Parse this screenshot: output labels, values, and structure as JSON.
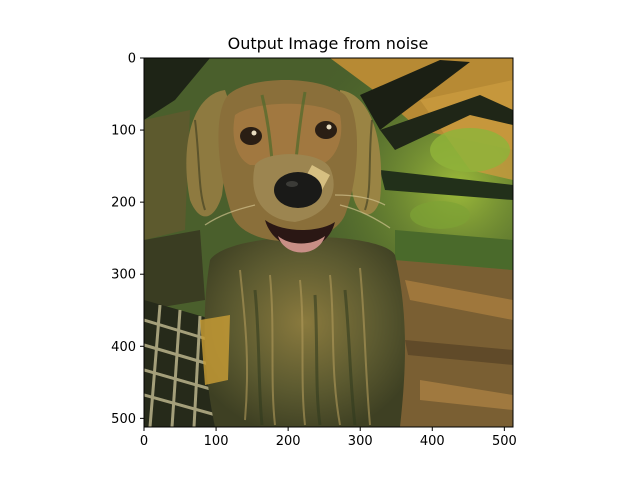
{
  "figure": {
    "title": "Output Image from noise",
    "image_subject": "golden retriever dog, smiling with open mouth, rendered in a painterly neural style-transfer look with green, ochre and black geometric brush strokes"
  },
  "axes": {
    "x_ticks": [
      "0",
      "100",
      "200",
      "300",
      "400",
      "500"
    ],
    "y_ticks": [
      "0",
      "100",
      "200",
      "300",
      "400",
      "500"
    ],
    "x_range": [
      0,
      512
    ],
    "y_range": [
      0,
      512
    ],
    "y_inverted": true
  },
  "palette": {
    "background_green": "#3f5a2a",
    "ochre": "#b8893a",
    "dark": "#1b1f14",
    "lime": "#8fb33a",
    "fur_gold": "#9a7a3c",
    "fur_dark": "#4d4a2c",
    "nose": "#1a1a18",
    "tongue": "#c98f86"
  }
}
